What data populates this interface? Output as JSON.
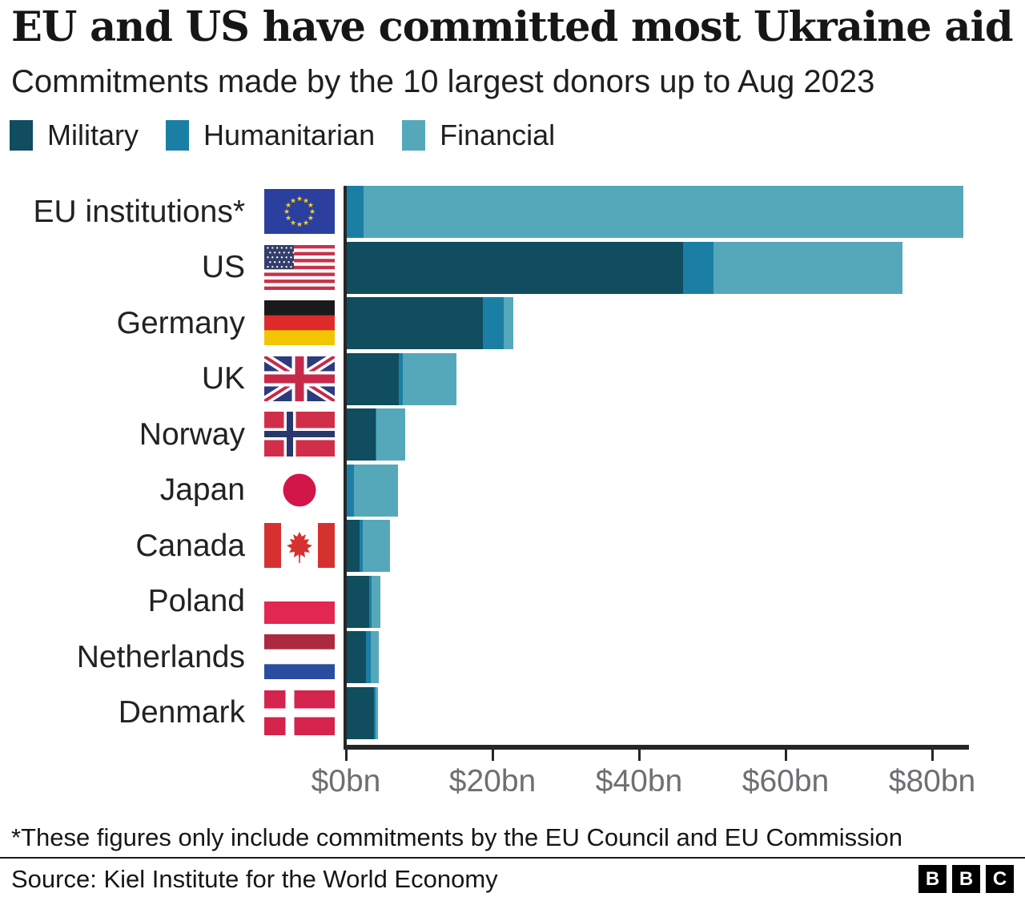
{
  "header": {
    "title": "EU and US have committed most Ukraine aid",
    "subtitle": "Commitments made by the 10 largest donors up to Aug 2023"
  },
  "legend": [
    {
      "label": "Military",
      "color": "#0f4d5f"
    },
    {
      "label": "Humanitarian",
      "color": "#1b7fa5"
    },
    {
      "label": "Financial",
      "color": "#55a8ba"
    }
  ],
  "chart_data": {
    "type": "bar",
    "orientation": "horizontal",
    "stacked": true,
    "unit": "$bn",
    "title": "EU and US have committed most Ukraine aid",
    "subtitle": "Commitments made by the 10 largest donors up to Aug 2023",
    "categories": [
      "EU institutions*",
      "US",
      "Germany",
      "UK",
      "Norway",
      "Japan",
      "Canada",
      "Poland",
      "Netherlands",
      "Denmark"
    ],
    "flag_icons": [
      "eu-flag-icon",
      "us-flag-icon",
      "germany-flag-icon",
      "uk-flag-icon",
      "norway-flag-icon",
      "japan-flag-icon",
      "canada-flag-icon",
      "poland-flag-icon",
      "netherlands-flag-icon",
      "denmark-flag-icon"
    ],
    "series": [
      {
        "name": "Military",
        "color": "#0f4d5f",
        "values": [
          0,
          46.0,
          18.7,
          7.2,
          4.0,
          0,
          1.9,
          3.2,
          2.7,
          3.8
        ]
      },
      {
        "name": "Humanitarian",
        "color": "#1b7fa5",
        "values": [
          2.4,
          4.2,
          2.8,
          0.6,
          0.2,
          1.1,
          0.35,
          0.35,
          0.65,
          0.3
        ]
      },
      {
        "name": "Financial",
        "color": "#55a8ba",
        "values": [
          81.8,
          25.8,
          1.4,
          7.3,
          3.9,
          6.0,
          3.8,
          1.2,
          1.1,
          0.25
        ]
      }
    ],
    "x_ticks": [
      "$0bn",
      "$20bn",
      "$40bn",
      "$60bn",
      "$80bn"
    ],
    "x_tick_values": [
      0,
      20,
      40,
      60,
      80
    ],
    "xlim": [
      0,
      85
    ],
    "legend_position": "top",
    "grid": false
  },
  "footnote": "*These figures only include commitments by the EU Council and EU Commission",
  "source": "Source: Kiel Institute for the World Economy",
  "logo": {
    "letters": [
      "B",
      "B",
      "C"
    ]
  }
}
